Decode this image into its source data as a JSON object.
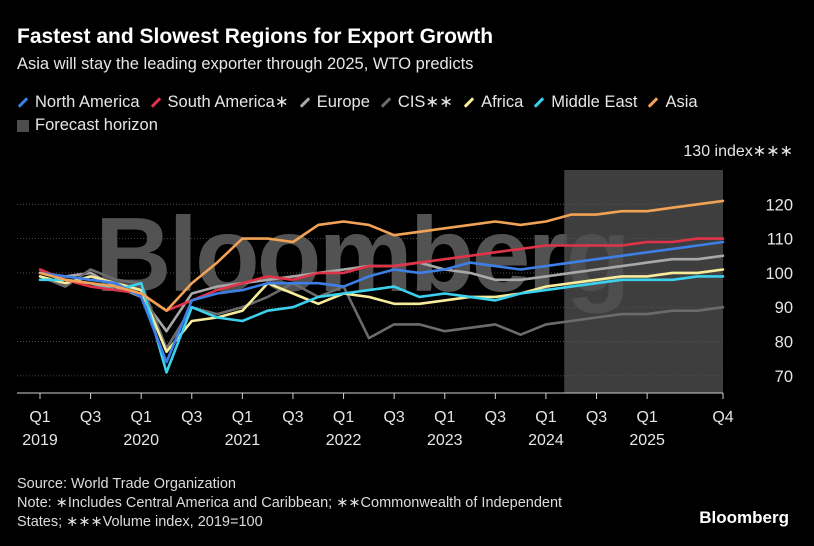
{
  "header": {
    "title": "Fastest and Slowest Regions for Export Growth",
    "subtitle": "Asia will stay the leading exporter through 2025, WTO predicts"
  },
  "legend": [
    {
      "label": "North America",
      "color": "#3d7fe6",
      "kind": "line"
    },
    {
      "label": "South America∗",
      "color": "#e0334a",
      "kind": "line"
    },
    {
      "label": "Europe",
      "color": "#a8a8a8",
      "kind": "line"
    },
    {
      "label": "CIS∗∗",
      "color": "#6b6b6b",
      "kind": "line"
    },
    {
      "label": "Africa",
      "color": "#f7ec9c",
      "kind": "line"
    },
    {
      "label": "Middle East",
      "color": "#3bd0ee",
      "kind": "line"
    },
    {
      "label": "Asia",
      "color": "#f2a255",
      "kind": "line"
    },
    {
      "label": "Forecast horizon",
      "color": "#4d4d4d",
      "kind": "box"
    }
  ],
  "chart_data": {
    "type": "line",
    "ylabel": "130 index∗∗∗",
    "ylim": [
      65,
      130
    ],
    "yticks": [
      70,
      80,
      90,
      100,
      110,
      120
    ],
    "x": [
      "2019-Q1",
      "2019-Q2",
      "2019-Q3",
      "2019-Q4",
      "2020-Q1",
      "2020-Q2",
      "2020-Q3",
      "2020-Q4",
      "2021-Q1",
      "2021-Q2",
      "2021-Q3",
      "2021-Q4",
      "2022-Q1",
      "2022-Q2",
      "2022-Q3",
      "2022-Q4",
      "2023-Q1",
      "2023-Q2",
      "2023-Q3",
      "2023-Q4",
      "2024-Q1",
      "2024-Q2",
      "2024-Q3",
      "2024-Q4",
      "2025-Q1",
      "2025-Q2",
      "2025-Q3",
      "2025-Q4"
    ],
    "xticks": [
      {
        "quarter": "Q1",
        "year": "2019",
        "index": 0
      },
      {
        "quarter": "Q3",
        "year": "",
        "index": 2
      },
      {
        "quarter": "Q1",
        "year": "2020",
        "index": 4
      },
      {
        "quarter": "Q3",
        "year": "",
        "index": 6
      },
      {
        "quarter": "Q1",
        "year": "2021",
        "index": 8
      },
      {
        "quarter": "Q3",
        "year": "",
        "index": 10
      },
      {
        "quarter": "Q1",
        "year": "2022",
        "index": 12
      },
      {
        "quarter": "Q3",
        "year": "",
        "index": 14
      },
      {
        "quarter": "Q1",
        "year": "2023",
        "index": 16
      },
      {
        "quarter": "Q3",
        "year": "",
        "index": 18
      },
      {
        "quarter": "Q1",
        "year": "2024",
        "index": 20
      },
      {
        "quarter": "Q3",
        "year": "",
        "index": 22
      },
      {
        "quarter": "Q1",
        "year": "2025",
        "index": 24
      },
      {
        "quarter": "Q4",
        "year": "",
        "index": 27
      }
    ],
    "forecast_start": 21,
    "forecast_end": 27,
    "grid": true,
    "series": [
      {
        "name": "Europe",
        "color": "#a8a8a8",
        "values": [
          100,
          99,
          100,
          96,
          93,
          83,
          94,
          96,
          97,
          98,
          99,
          100,
          101,
          102,
          102,
          103,
          101,
          100,
          98,
          98,
          99,
          100,
          101,
          102,
          103,
          104,
          104,
          105
        ]
      },
      {
        "name": "CIS∗∗",
        "color": "#6b6b6b",
        "values": [
          99,
          96,
          101,
          98,
          97,
          78,
          90,
          88,
          90,
          93,
          97,
          93,
          96,
          81,
          85,
          85,
          83,
          84,
          85,
          82,
          85,
          86,
          87,
          88,
          88,
          89,
          89,
          90
        ]
      },
      {
        "name": "Africa",
        "color": "#f7ec9c",
        "values": [
          99,
          97,
          99,
          97,
          95,
          77,
          86,
          87,
          89,
          97,
          94,
          91,
          94,
          93,
          91,
          91,
          92,
          93,
          93,
          94,
          96,
          97,
          98,
          99,
          99,
          100,
          100,
          101
        ]
      },
      {
        "name": "Middle East",
        "color": "#3bd0ee",
        "values": [
          98,
          98,
          97,
          95,
          97,
          71,
          90,
          87,
          86,
          89,
          90,
          93,
          94,
          95,
          96,
          93,
          94,
          93,
          92,
          94,
          95,
          96,
          97,
          98,
          98,
          98,
          99,
          99
        ]
      },
      {
        "name": "South America∗",
        "color": "#e0334a",
        "values": [
          101,
          98,
          96,
          95,
          94,
          89,
          92,
          95,
          97,
          99,
          98,
          100,
          100,
          102,
          102,
          103,
          104,
          105,
          106,
          107,
          108,
          108,
          108,
          108,
          109,
          109,
          110,
          110
        ]
      },
      {
        "name": "North America",
        "color": "#3d7fe6",
        "values": [
          100,
          99,
          98,
          97,
          93,
          74,
          92,
          94,
          95,
          97,
          97,
          97,
          96,
          99,
          101,
          100,
          101,
          103,
          102,
          101,
          102,
          103,
          104,
          105,
          106,
          107,
          108,
          109
        ]
      },
      {
        "name": "Asia",
        "color": "#f2a255",
        "values": [
          100,
          98,
          97,
          96,
          94,
          89,
          97,
          103,
          110,
          110,
          109,
          114,
          115,
          114,
          111,
          112,
          113,
          114,
          115,
          114,
          115,
          117,
          117,
          118,
          118,
          119,
          120,
          121
        ]
      }
    ]
  },
  "footer": {
    "source": "Source: World Trade Organization",
    "note1": "Note: ∗Includes Central America and Caribbean; ∗∗Commonwealth of Independent",
    "note2": "States; ∗∗∗Volume index, 2019=100"
  },
  "brand": "Bloomberg",
  "watermark": "Bloomberg"
}
